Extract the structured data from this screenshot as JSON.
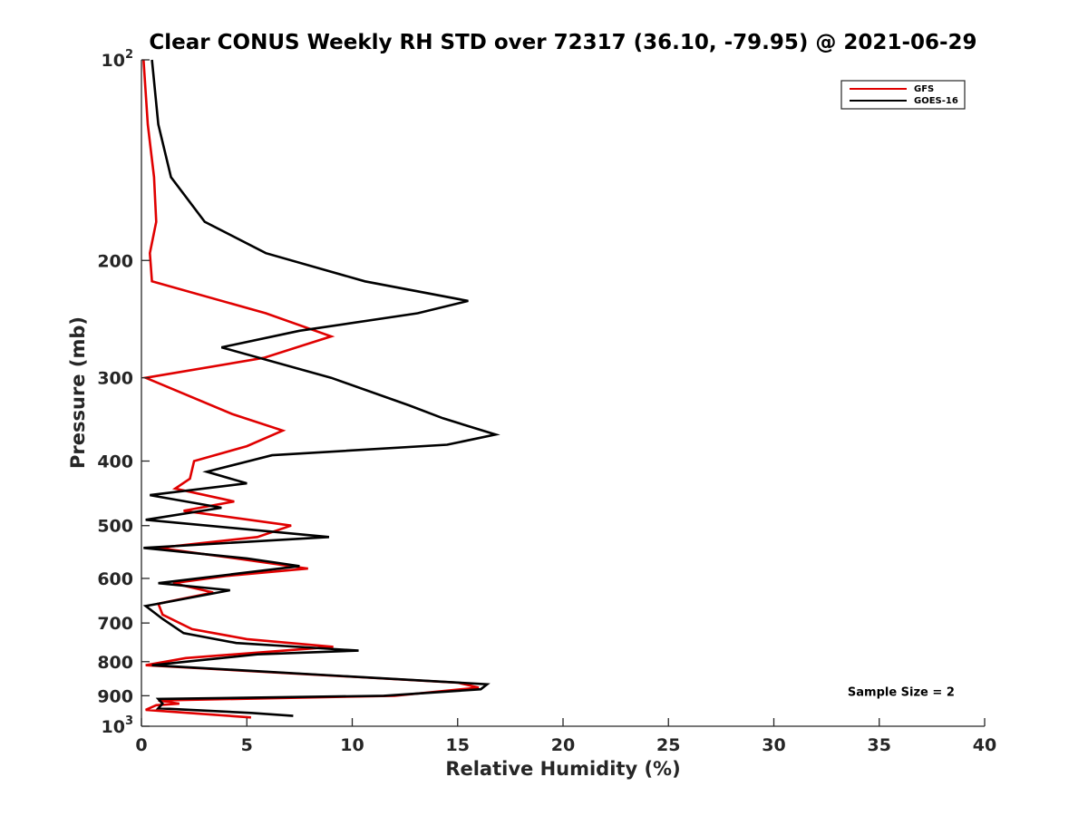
{
  "chart_data": {
    "type": "line",
    "title": "Clear CONUS Weekly RH STD over 72317 (36.10, -79.95) @ 2021-06-29",
    "xlabel": "Relative Humidity (%)",
    "ylabel": "Pressure (mb)",
    "xlim": [
      0,
      40
    ],
    "ylim": [
      100,
      1000
    ],
    "y_scale": "log",
    "y_reversed": true,
    "grid": false,
    "legend_position": "top-right",
    "x_ticks": [
      0,
      5,
      10,
      15,
      20,
      25,
      30,
      35,
      40
    ],
    "x_tick_labels": [
      "0",
      "5",
      "10",
      "15",
      "20",
      "25",
      "30",
      "35",
      "40"
    ],
    "y_ticks": [
      100,
      200,
      300,
      400,
      500,
      600,
      700,
      800,
      900,
      1000
    ],
    "y_tick_labels": [
      {
        "base": "10",
        "exp": "2"
      },
      {
        "base": "200",
        "exp": ""
      },
      {
        "base": "300",
        "exp": ""
      },
      {
        "base": "400",
        "exp": ""
      },
      {
        "base": "500",
        "exp": ""
      },
      {
        "base": "600",
        "exp": ""
      },
      {
        "base": "700",
        "exp": ""
      },
      {
        "base": "800",
        "exp": ""
      },
      {
        "base": "900",
        "exp": ""
      },
      {
        "base": "10",
        "exp": "3"
      }
    ],
    "series": [
      {
        "name": "GFS",
        "color": "#e00000",
        "points": [
          [
            0.1,
            100
          ],
          [
            0.3,
            125
          ],
          [
            0.6,
            150
          ],
          [
            0.7,
            175
          ],
          [
            0.4,
            195
          ],
          [
            0.5,
            215
          ],
          [
            5.9,
            240
          ],
          [
            9.0,
            260
          ],
          [
            5.8,
            280
          ],
          [
            0.2,
            300
          ],
          [
            4.3,
            340
          ],
          [
            6.7,
            360
          ],
          [
            5.0,
            380
          ],
          [
            2.5,
            400
          ],
          [
            2.3,
            425
          ],
          [
            1.6,
            440
          ],
          [
            4.4,
            460
          ],
          [
            2.0,
            475
          ],
          [
            7.1,
            500
          ],
          [
            5.5,
            520
          ],
          [
            0.8,
            540
          ],
          [
            4.5,
            560
          ],
          [
            7.9,
            580
          ],
          [
            4.0,
            595
          ],
          [
            1.5,
            610
          ],
          [
            3.4,
            630
          ],
          [
            0.8,
            655
          ],
          [
            1.0,
            680
          ],
          [
            2.4,
            715
          ],
          [
            5.0,
            740
          ],
          [
            9.1,
            760
          ],
          [
            2.1,
            790
          ],
          [
            0.2,
            810
          ],
          [
            15.0,
            860
          ],
          [
            16.0,
            875
          ],
          [
            12.0,
            900
          ],
          [
            0.8,
            915
          ],
          [
            1.8,
            925
          ],
          [
            0.7,
            930
          ],
          [
            0.2,
            945
          ],
          [
            5.2,
            970
          ]
        ]
      },
      {
        "name": "GOES-16",
        "color": "#000000",
        "points": [
          [
            0.5,
            100
          ],
          [
            0.8,
            125
          ],
          [
            1.4,
            150
          ],
          [
            3.0,
            175
          ],
          [
            5.9,
            195
          ],
          [
            10.6,
            215
          ],
          [
            15.5,
            230
          ],
          [
            13.1,
            240
          ],
          [
            7.5,
            255
          ],
          [
            3.8,
            270
          ],
          [
            9.0,
            300
          ],
          [
            12.7,
            330
          ],
          [
            14.3,
            345
          ],
          [
            16.8,
            365
          ],
          [
            14.5,
            378
          ],
          [
            6.2,
            392
          ],
          [
            3.1,
            415
          ],
          [
            5.0,
            432
          ],
          [
            0.4,
            450
          ],
          [
            3.8,
            470
          ],
          [
            0.2,
            490
          ],
          [
            8.9,
            520
          ],
          [
            0.1,
            540
          ],
          [
            5.0,
            560
          ],
          [
            7.5,
            575
          ],
          [
            0.8,
            610
          ],
          [
            4.2,
            625
          ],
          [
            0.8,
            655
          ],
          [
            0.2,
            660
          ],
          [
            1.0,
            690
          ],
          [
            2.0,
            725
          ],
          [
            4.5,
            750
          ],
          [
            10.3,
            770
          ],
          [
            5.5,
            780
          ],
          [
            0.5,
            810
          ],
          [
            16.4,
            865
          ],
          [
            16.1,
            880
          ],
          [
            11.5,
            900
          ],
          [
            0.8,
            910
          ],
          [
            1.0,
            925
          ],
          [
            0.8,
            940
          ],
          [
            5.2,
            955
          ],
          [
            7.2,
            965
          ]
        ]
      }
    ],
    "annotations": [
      {
        "text": "Sample Size = 2",
        "x": 33.5,
        "y": 900
      }
    ]
  }
}
